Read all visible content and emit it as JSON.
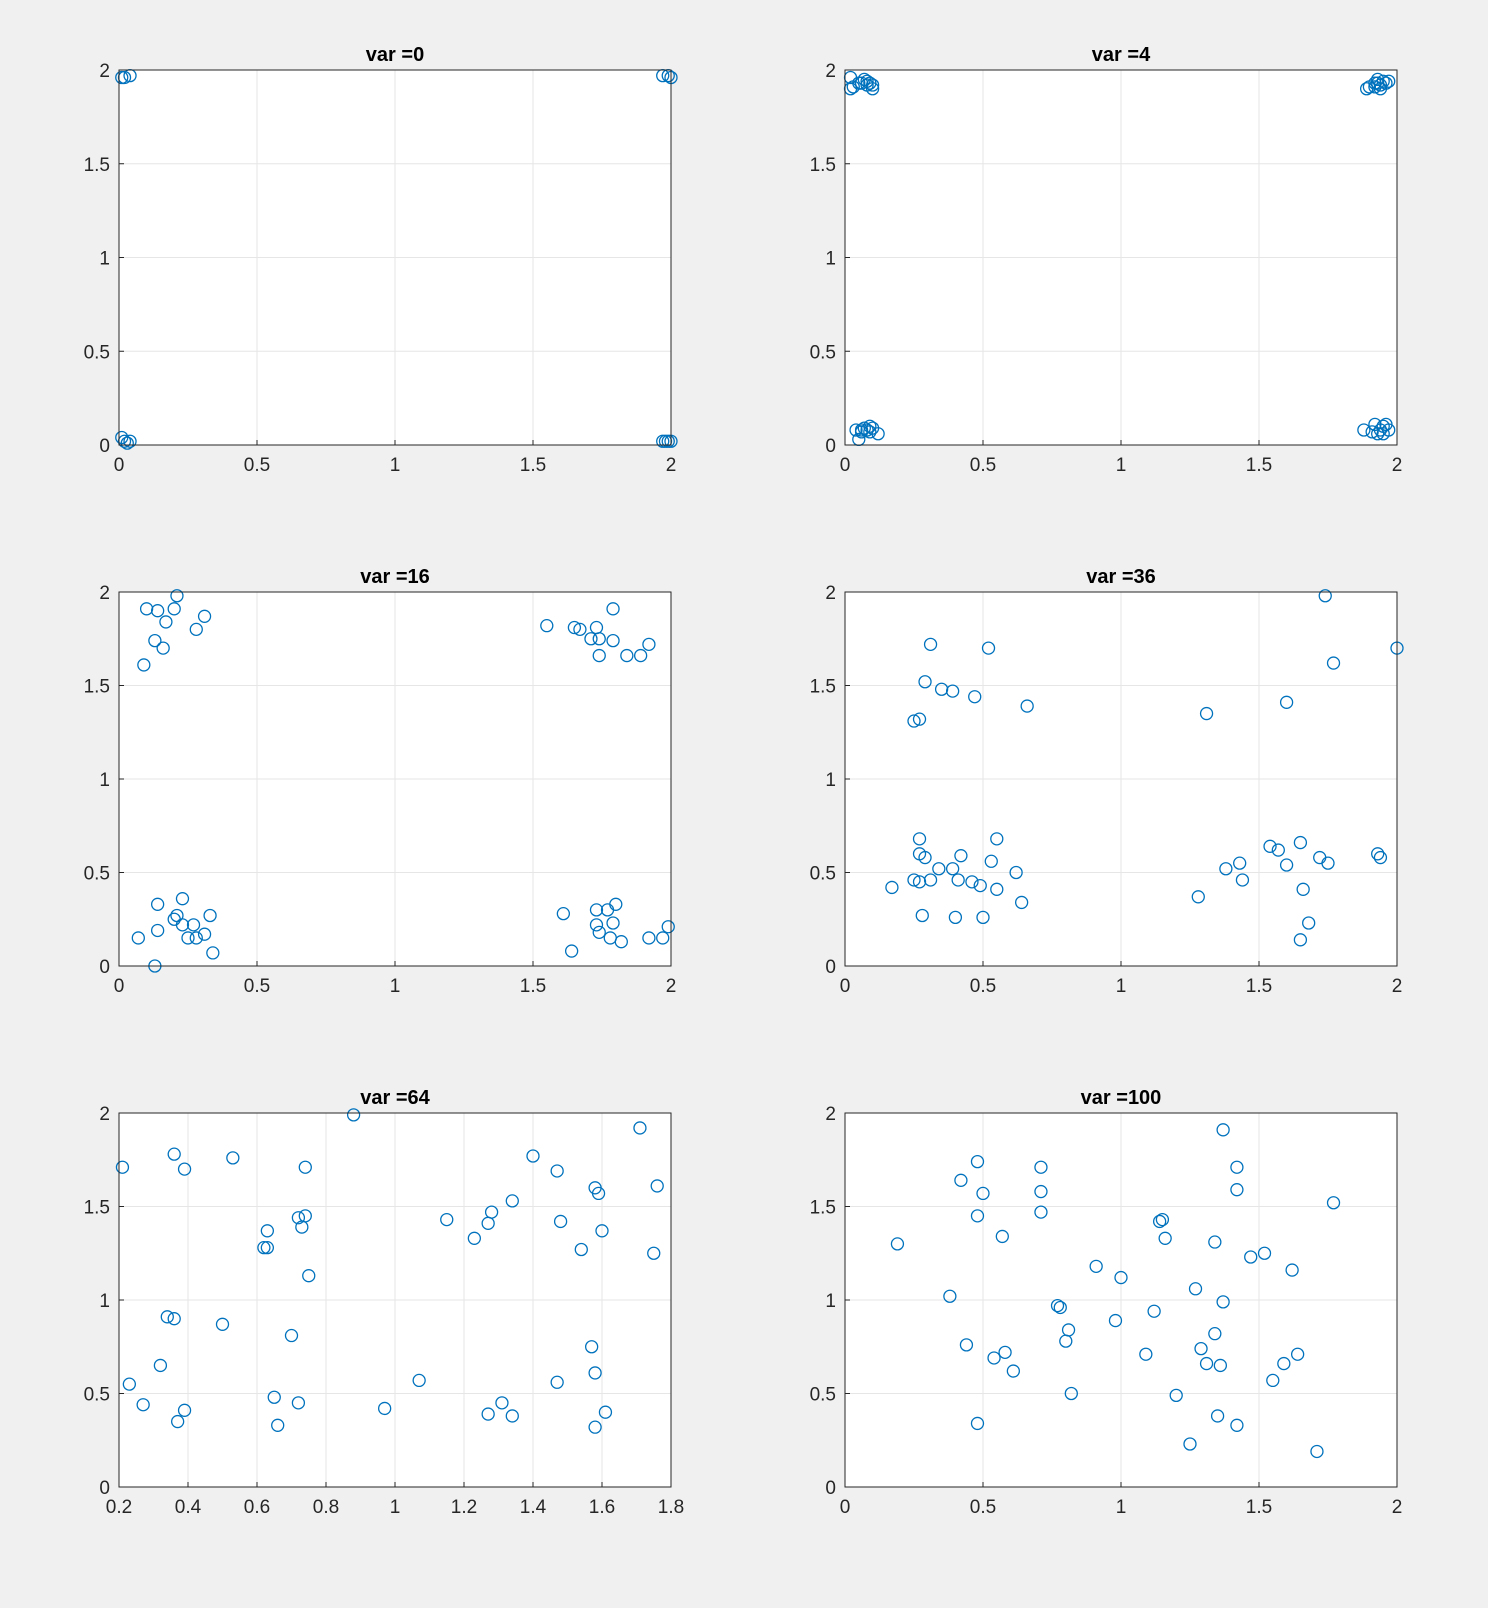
{
  "figure": {
    "background": "#f0f0f0",
    "marker_color": "#0072bd"
  },
  "chart_data": [
    {
      "type": "scatter",
      "title": "var =0",
      "xlim": [
        0,
        2
      ],
      "ylim": [
        0,
        2
      ],
      "xticks": [
        0,
        0.5,
        1,
        1.5,
        2
      ],
      "yticks": [
        0,
        0.5,
        1,
        1.5,
        2
      ],
      "xtick_labels": [
        "0",
        "0.5",
        "1",
        "1.5",
        "2"
      ],
      "ytick_labels": [
        "0",
        "0.5",
        "1",
        "1.5",
        "2"
      ],
      "grid": true,
      "marker": "circle-open",
      "points": [
        [
          0.01,
          1.96
        ],
        [
          0.02,
          1.96
        ],
        [
          0.04,
          1.97
        ],
        [
          1.97,
          1.97
        ],
        [
          1.99,
          1.97
        ],
        [
          2.0,
          1.96
        ],
        [
          0.01,
          0.04
        ],
        [
          0.02,
          0.02
        ],
        [
          0.03,
          0.01
        ],
        [
          0.04,
          0.02
        ],
        [
          1.97,
          0.02
        ],
        [
          1.98,
          0.02
        ],
        [
          1.99,
          0.02
        ],
        [
          2.0,
          0.02
        ]
      ]
    },
    {
      "type": "scatter",
      "title": "var =4",
      "xlim": [
        0,
        2
      ],
      "ylim": [
        0,
        2
      ],
      "xticks": [
        0,
        0.5,
        1,
        1.5,
        2
      ],
      "yticks": [
        0,
        0.5,
        1,
        1.5,
        2
      ],
      "xtick_labels": [
        "0",
        "0.5",
        "1",
        "1.5",
        "2"
      ],
      "ytick_labels": [
        "0",
        "0.5",
        "1",
        "1.5",
        "2"
      ],
      "grid": true,
      "marker": "circle-open",
      "points": [
        [
          0.02,
          1.96
        ],
        [
          0.03,
          1.91
        ],
        [
          0.02,
          1.9
        ],
        [
          0.06,
          1.93
        ],
        [
          0.07,
          1.95
        ],
        [
          0.08,
          1.94
        ],
        [
          0.09,
          1.93
        ],
        [
          0.1,
          1.92
        ],
        [
          0.1,
          1.9
        ],
        [
          0.05,
          1.93
        ],
        [
          0.08,
          1.92
        ],
        [
          1.89,
          1.9
        ],
        [
          1.9,
          1.91
        ],
        [
          1.92,
          1.93
        ],
        [
          1.93,
          1.95
        ],
        [
          1.94,
          1.92
        ],
        [
          1.95,
          1.94
        ],
        [
          1.96,
          1.93
        ],
        [
          1.97,
          1.94
        ],
        [
          1.92,
          1.91
        ],
        [
          1.94,
          1.9
        ],
        [
          1.93,
          1.93
        ],
        [
          0.05,
          0.03
        ],
        [
          0.06,
          0.08
        ],
        [
          0.07,
          0.09
        ],
        [
          0.08,
          0.08
        ],
        [
          0.09,
          0.07
        ],
        [
          0.1,
          0.09
        ],
        [
          0.12,
          0.06
        ],
        [
          0.06,
          0.07
        ],
        [
          0.09,
          0.1
        ],
        [
          0.04,
          0.08
        ],
        [
          1.88,
          0.08
        ],
        [
          1.91,
          0.07
        ],
        [
          1.92,
          0.11
        ],
        [
          1.94,
          0.08
        ],
        [
          1.95,
          0.06
        ],
        [
          1.96,
          0.11
        ],
        [
          1.97,
          0.08
        ],
        [
          1.93,
          0.06
        ],
        [
          1.95,
          0.1
        ]
      ]
    },
    {
      "type": "scatter",
      "title": "var =16",
      "xlim": [
        0,
        2
      ],
      "ylim": [
        0,
        2
      ],
      "xticks": [
        0,
        0.5,
        1,
        1.5,
        2
      ],
      "yticks": [
        0,
        0.5,
        1,
        1.5,
        2
      ],
      "xtick_labels": [
        "0",
        "0.5",
        "1",
        "1.5",
        "2"
      ],
      "ytick_labels": [
        "0",
        "0.5",
        "1",
        "1.5",
        "2"
      ],
      "grid": true,
      "marker": "circle-open",
      "points": [
        [
          0.1,
          1.91
        ],
        [
          0.14,
          1.9
        ],
        [
          0.2,
          1.91
        ],
        [
          0.21,
          1.98
        ],
        [
          0.31,
          1.87
        ],
        [
          0.28,
          1.8
        ],
        [
          0.17,
          1.84
        ],
        [
          0.13,
          1.74
        ],
        [
          0.16,
          1.7
        ],
        [
          0.09,
          1.61
        ],
        [
          1.55,
          1.82
        ],
        [
          1.65,
          1.81
        ],
        [
          1.67,
          1.8
        ],
        [
          1.71,
          1.75
        ],
        [
          1.73,
          1.81
        ],
        [
          1.74,
          1.75
        ],
        [
          1.74,
          1.66
        ],
        [
          1.79,
          1.91
        ],
        [
          1.79,
          1.74
        ],
        [
          1.84,
          1.66
        ],
        [
          1.89,
          1.66
        ],
        [
          1.92,
          1.72
        ],
        [
          0.14,
          0.33
        ],
        [
          0.23,
          0.36
        ],
        [
          0.2,
          0.25
        ],
        [
          0.21,
          0.27
        ],
        [
          0.23,
          0.22
        ],
        [
          0.27,
          0.22
        ],
        [
          0.25,
          0.15
        ],
        [
          0.28,
          0.15
        ],
        [
          0.31,
          0.17
        ],
        [
          0.33,
          0.27
        ],
        [
          0.34,
          0.07
        ],
        [
          0.14,
          0.19
        ],
        [
          0.07,
          0.15
        ],
        [
          0.13,
          0.0
        ],
        [
          1.61,
          0.28
        ],
        [
          1.73,
          0.3
        ],
        [
          1.77,
          0.3
        ],
        [
          1.8,
          0.33
        ],
        [
          1.73,
          0.22
        ],
        [
          1.79,
          0.23
        ],
        [
          1.74,
          0.18
        ],
        [
          1.78,
          0.15
        ],
        [
          1.82,
          0.13
        ],
        [
          1.92,
          0.15
        ],
        [
          1.97,
          0.15
        ],
        [
          1.99,
          0.21
        ],
        [
          1.64,
          0.08
        ]
      ]
    },
    {
      "type": "scatter",
      "title": "var =36",
      "xlim": [
        0,
        2
      ],
      "ylim": [
        0,
        2
      ],
      "xticks": [
        0,
        0.5,
        1,
        1.5,
        2
      ],
      "yticks": [
        0,
        0.5,
        1,
        1.5,
        2
      ],
      "xtick_labels": [
        "0",
        "0.5",
        "1",
        "1.5",
        "2"
      ],
      "ytick_labels": [
        "0",
        "0.5",
        "1",
        "1.5",
        "2"
      ],
      "grid": true,
      "marker": "circle-open",
      "points": [
        [
          0.31,
          1.72
        ],
        [
          0.52,
          1.7
        ],
        [
          0.29,
          1.52
        ],
        [
          0.35,
          1.48
        ],
        [
          0.39,
          1.47
        ],
        [
          0.47,
          1.44
        ],
        [
          0.66,
          1.39
        ],
        [
          0.25,
          1.31
        ],
        [
          0.27,
          1.32
        ],
        [
          1.74,
          1.98
        ],
        [
          2.0,
          1.7
        ],
        [
          1.77,
          1.62
        ],
        [
          1.6,
          1.41
        ],
        [
          1.31,
          1.35
        ],
        [
          0.27,
          0.68
        ],
        [
          0.55,
          0.68
        ],
        [
          0.27,
          0.6
        ],
        [
          0.29,
          0.58
        ],
        [
          0.42,
          0.59
        ],
        [
          0.53,
          0.56
        ],
        [
          0.34,
          0.52
        ],
        [
          0.39,
          0.52
        ],
        [
          0.62,
          0.5
        ],
        [
          0.25,
          0.46
        ],
        [
          0.27,
          0.45
        ],
        [
          0.31,
          0.46
        ],
        [
          0.41,
          0.46
        ],
        [
          0.46,
          0.45
        ],
        [
          0.49,
          0.43
        ],
        [
          0.55,
          0.41
        ],
        [
          0.17,
          0.42
        ],
        [
          0.64,
          0.34
        ],
        [
          0.28,
          0.27
        ],
        [
          0.4,
          0.26
        ],
        [
          0.5,
          0.26
        ],
        [
          1.54,
          0.64
        ],
        [
          1.57,
          0.62
        ],
        [
          1.65,
          0.66
        ],
        [
          1.72,
          0.58
        ],
        [
          1.75,
          0.55
        ],
        [
          1.93,
          0.6
        ],
        [
          1.94,
          0.58
        ],
        [
          1.43,
          0.55
        ],
        [
          1.38,
          0.52
        ],
        [
          1.6,
          0.54
        ],
        [
          1.44,
          0.46
        ],
        [
          1.66,
          0.41
        ],
        [
          1.28,
          0.37
        ],
        [
          1.68,
          0.23
        ],
        [
          1.65,
          0.14
        ]
      ]
    },
    {
      "type": "scatter",
      "title": "var =64",
      "xlim": [
        0.2,
        1.8
      ],
      "ylim": [
        0,
        2
      ],
      "xticks": [
        0.2,
        0.4,
        0.6,
        0.8,
        1,
        1.2,
        1.4,
        1.6,
        1.8
      ],
      "yticks": [
        0,
        0.5,
        1,
        1.5,
        2
      ],
      "xtick_labels": [
        "0.2",
        "0.4",
        "0.6",
        "0.8",
        "1",
        "1.2",
        "1.4",
        "1.6",
        "1.8"
      ],
      "ytick_labels": [
        "0",
        "0.5",
        "1",
        "1.5",
        "2"
      ],
      "grid": true,
      "marker": "circle-open",
      "points": [
        [
          0.21,
          1.71
        ],
        [
          0.36,
          1.78
        ],
        [
          0.39,
          1.7
        ],
        [
          0.53,
          1.76
        ],
        [
          0.74,
          1.71
        ],
        [
          0.88,
          1.99
        ],
        [
          1.71,
          1.92
        ],
        [
          1.4,
          1.77
        ],
        [
          1.47,
          1.69
        ],
        [
          1.58,
          1.6
        ],
        [
          1.59,
          1.57
        ],
        [
          1.76,
          1.61
        ],
        [
          0.63,
          1.37
        ],
        [
          0.72,
          1.44
        ],
        [
          0.74,
          1.45
        ],
        [
          0.73,
          1.39
        ],
        [
          0.62,
          1.28
        ],
        [
          0.63,
          1.28
        ],
        [
          0.75,
          1.13
        ],
        [
          1.15,
          1.43
        ],
        [
          1.23,
          1.33
        ],
        [
          1.27,
          1.41
        ],
        [
          1.28,
          1.47
        ],
        [
          1.34,
          1.53
        ],
        [
          1.48,
          1.42
        ],
        [
          1.6,
          1.37
        ],
        [
          1.54,
          1.27
        ],
        [
          1.75,
          1.25
        ],
        [
          0.34,
          0.91
        ],
        [
          0.36,
          0.9
        ],
        [
          0.5,
          0.87
        ],
        [
          0.7,
          0.81
        ],
        [
          0.23,
          0.55
        ],
        [
          0.27,
          0.44
        ],
        [
          0.32,
          0.65
        ],
        [
          0.37,
          0.35
        ],
        [
          0.39,
          0.41
        ],
        [
          0.65,
          0.48
        ],
        [
          0.66,
          0.33
        ],
        [
          0.72,
          0.45
        ],
        [
          0.97,
          0.42
        ],
        [
          1.07,
          0.57
        ],
        [
          1.27,
          0.39
        ],
        [
          1.31,
          0.45
        ],
        [
          1.34,
          0.38
        ],
        [
          1.47,
          0.56
        ],
        [
          1.57,
          0.75
        ],
        [
          1.58,
          0.61
        ],
        [
          1.58,
          0.32
        ],
        [
          1.61,
          0.4
        ]
      ]
    },
    {
      "type": "scatter",
      "title": "var =100",
      "xlim": [
        0,
        2
      ],
      "ylim": [
        0,
        2
      ],
      "xticks": [
        0,
        0.5,
        1,
        1.5,
        2
      ],
      "yticks": [
        0,
        0.5,
        1,
        1.5,
        2
      ],
      "xtick_labels": [
        "0",
        "0.5",
        "1",
        "1.5",
        "2"
      ],
      "ytick_labels": [
        "0",
        "0.5",
        "1",
        "1.5",
        "2"
      ],
      "grid": true,
      "marker": "circle-open",
      "points": [
        [
          0.48,
          1.74
        ],
        [
          0.42,
          1.64
        ],
        [
          0.5,
          1.57
        ],
        [
          0.48,
          1.45
        ],
        [
          0.71,
          1.71
        ],
        [
          0.71,
          1.58
        ],
        [
          0.71,
          1.47
        ],
        [
          0.57,
          1.34
        ],
        [
          0.19,
          1.3
        ],
        [
          1.37,
          1.91
        ],
        [
          1.42,
          1.71
        ],
        [
          1.42,
          1.59
        ],
        [
          1.77,
          1.52
        ],
        [
          1.14,
          1.42
        ],
        [
          1.15,
          1.43
        ],
        [
          1.16,
          1.33
        ],
        [
          1.34,
          1.31
        ],
        [
          1.47,
          1.23
        ],
        [
          1.52,
          1.25
        ],
        [
          1.62,
          1.16
        ],
        [
          0.91,
          1.18
        ],
        [
          1.0,
          1.12
        ],
        [
          1.27,
          1.06
        ],
        [
          1.37,
          0.99
        ],
        [
          0.38,
          1.02
        ],
        [
          0.77,
          0.97
        ],
        [
          0.78,
          0.96
        ],
        [
          0.98,
          0.89
        ],
        [
          1.12,
          0.94
        ],
        [
          0.81,
          0.84
        ],
        [
          0.8,
          0.78
        ],
        [
          0.44,
          0.76
        ],
        [
          0.58,
          0.72
        ],
        [
          0.54,
          0.69
        ],
        [
          0.61,
          0.62
        ],
        [
          1.09,
          0.71
        ],
        [
          1.29,
          0.74
        ],
        [
          1.31,
          0.66
        ],
        [
          1.34,
          0.82
        ],
        [
          1.36,
          0.65
        ],
        [
          1.59,
          0.66
        ],
        [
          1.64,
          0.71
        ],
        [
          1.55,
          0.57
        ],
        [
          0.82,
          0.5
        ],
        [
          1.2,
          0.49
        ],
        [
          0.48,
          0.34
        ],
        [
          1.35,
          0.38
        ],
        [
          1.42,
          0.33
        ],
        [
          1.25,
          0.23
        ],
        [
          1.71,
          0.19
        ]
      ]
    }
  ]
}
